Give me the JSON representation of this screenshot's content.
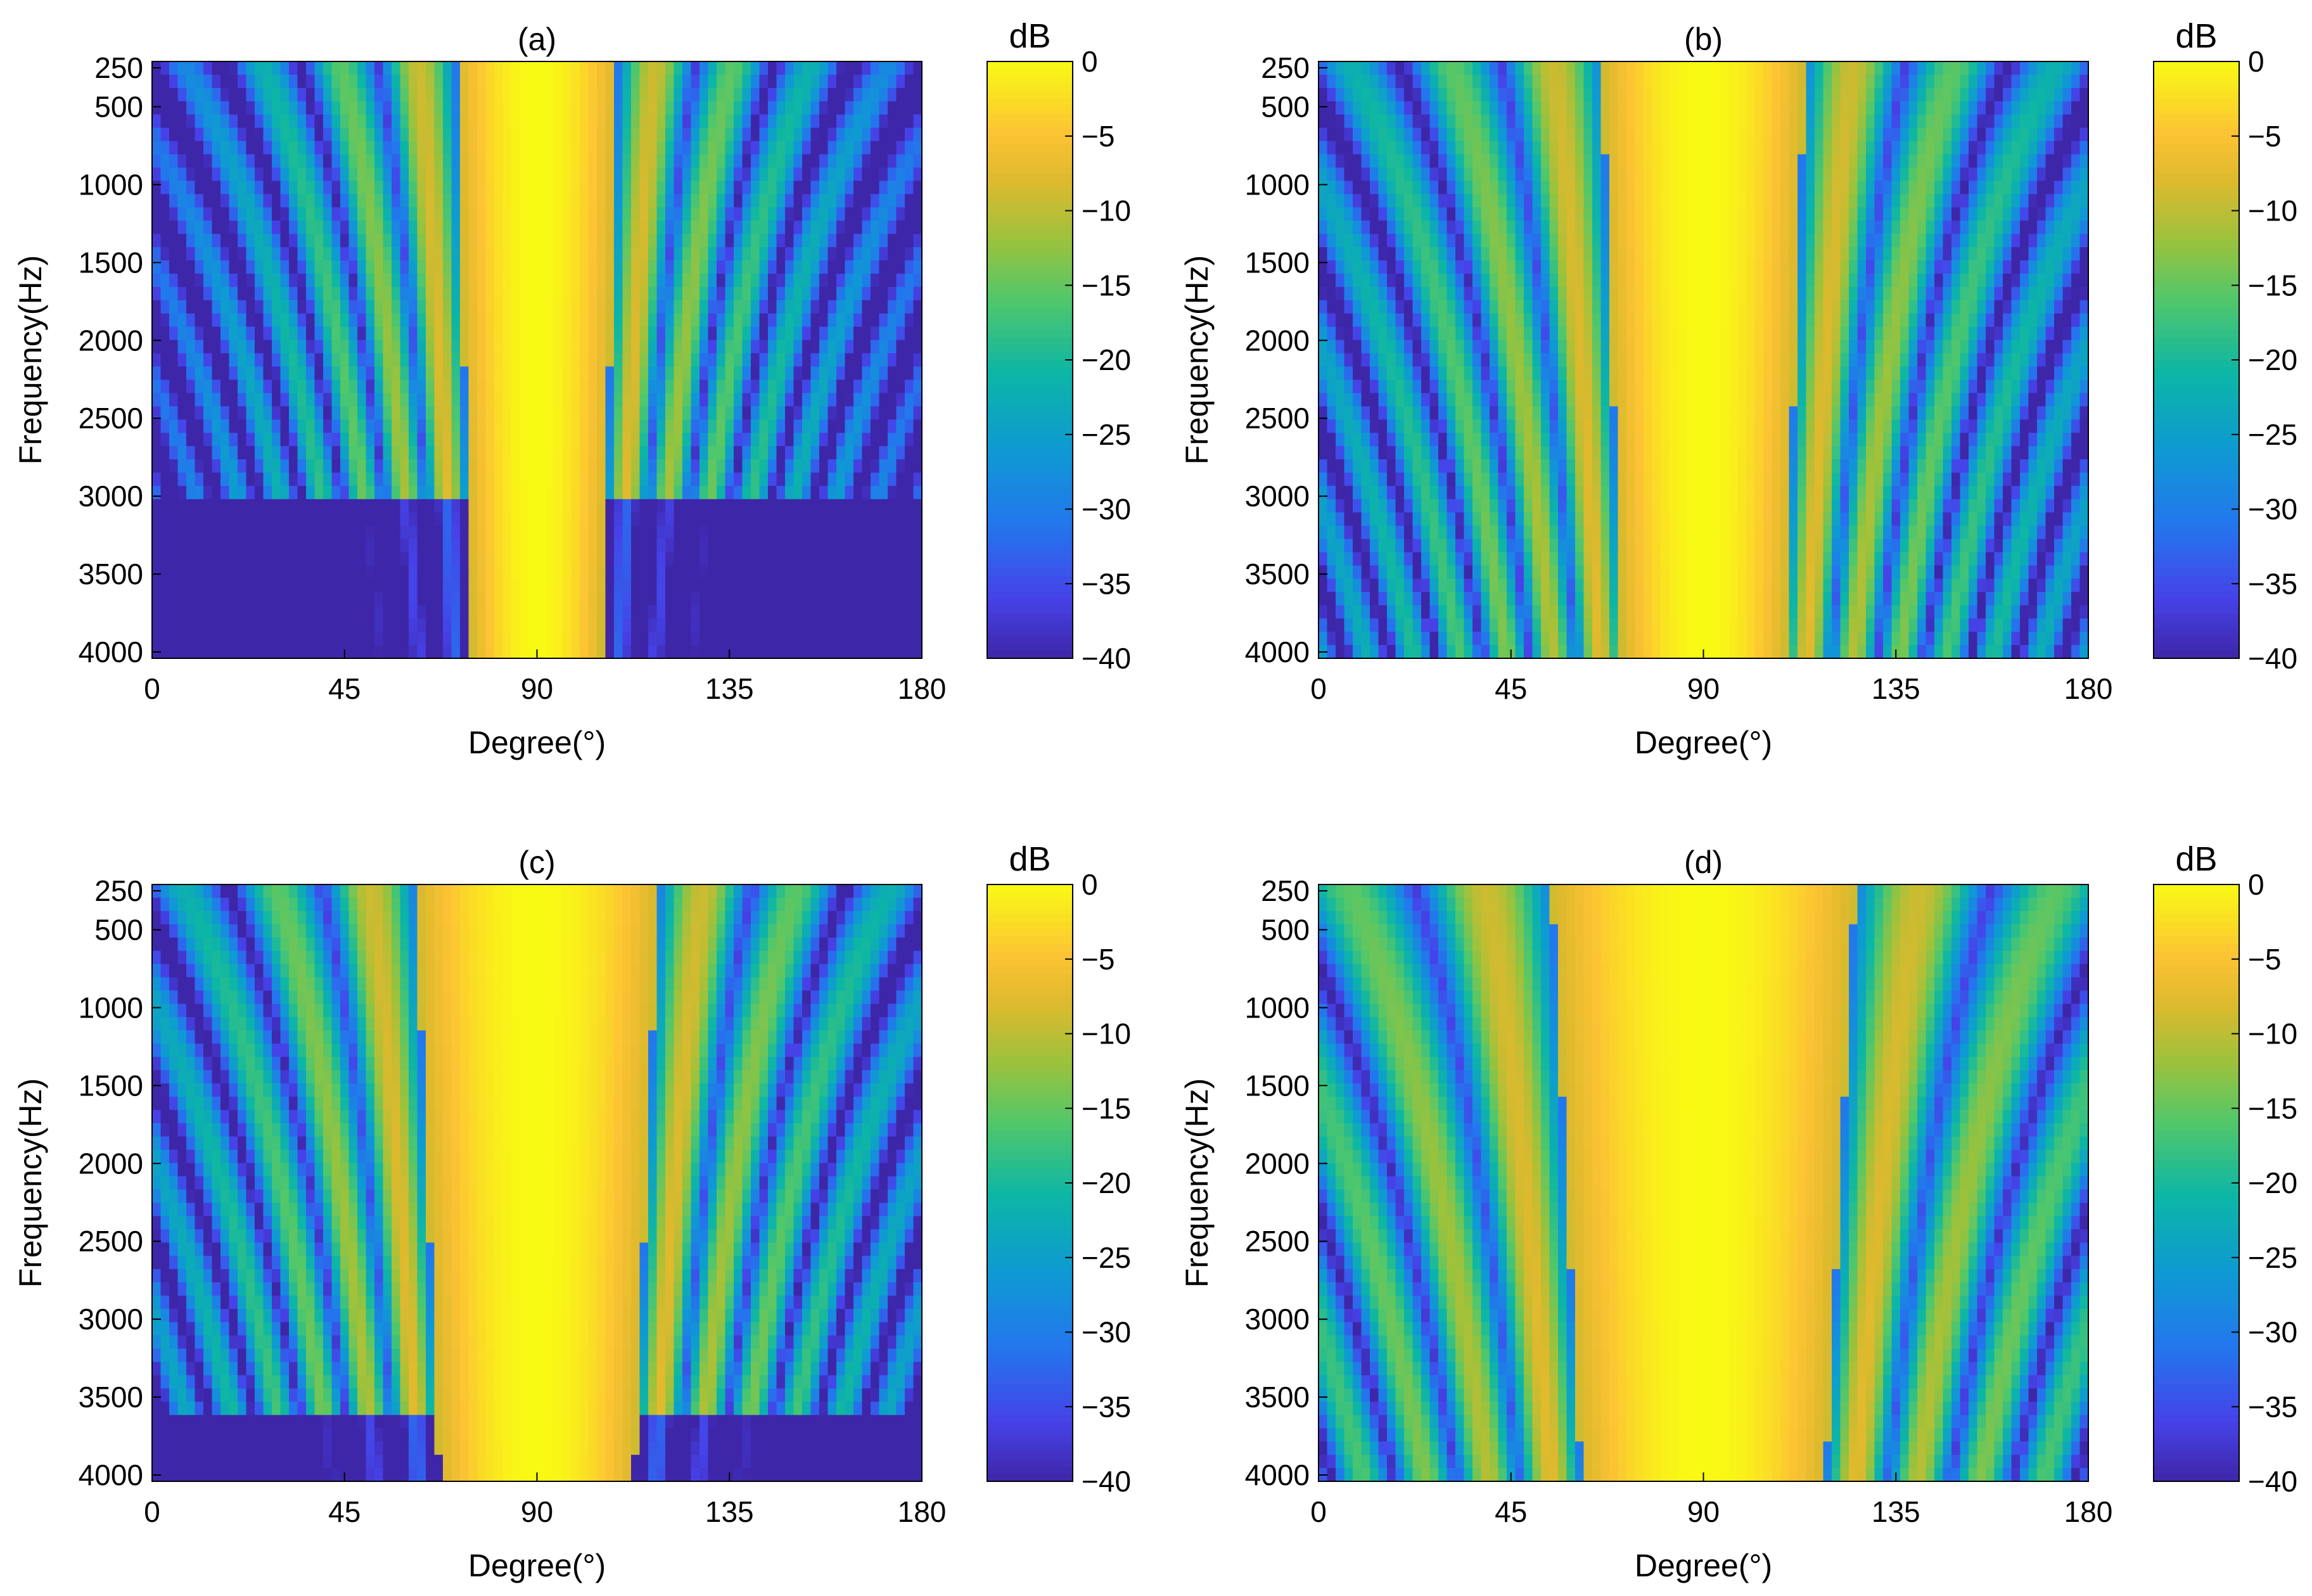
{
  "chart_data": [
    {
      "type": "heatmap",
      "title": "(a)",
      "xlabel": "Degree(°)",
      "ylabel": "Frequency(Hz)",
      "x_range": [
        0,
        180
      ],
      "y_range": [
        250,
        4000
      ],
      "y_inverted": true,
      "x_ticks": [
        "0",
        "45",
        "90",
        "135",
        "180"
      ],
      "y_ticks": [
        "250",
        "500",
        "1000",
        "1500",
        "2000",
        "2500",
        "3000",
        "3500",
        "4000"
      ],
      "colorbar": {
        "label": "dB",
        "range": [
          -40,
          0
        ],
        "ticks": [
          "0",
          "−5",
          "−10",
          "−15",
          "−20",
          "−25",
          "−30",
          "−35",
          "−40"
        ]
      },
      "pattern": {
        "lobe_width_deg": 16,
        "side_gap_deg": 20,
        "sidelobes_to_khz": 3.0,
        "floor_db": -40
      }
    },
    {
      "type": "heatmap",
      "title": "(b)",
      "xlabel": "Degree(°)",
      "ylabel": "Frequency(Hz)",
      "x_range": [
        0,
        180
      ],
      "y_range": [
        250,
        4000
      ],
      "y_inverted": true,
      "x_ticks": [
        "0",
        "45",
        "90",
        "135",
        "180"
      ],
      "y_ticks": [
        "250",
        "500",
        "1000",
        "1500",
        "2000",
        "2500",
        "3000",
        "3500",
        "4000"
      ],
      "colorbar": {
        "label": "dB",
        "range": [
          -40,
          0
        ],
        "ticks": [
          "0",
          "−5",
          "−10",
          "−15",
          "−20",
          "−25",
          "−30",
          "−35",
          "−40"
        ]
      },
      "pattern": {
        "lobe_width_deg": 20,
        "side_gap_deg": 26,
        "sidelobes_to_khz": 4.0,
        "floor_db": -40
      }
    },
    {
      "type": "heatmap",
      "title": "(c)",
      "xlabel": "Degree(°)",
      "ylabel": "Frequency(Hz)",
      "x_range": [
        0,
        180
      ],
      "y_range": [
        250,
        4000
      ],
      "y_inverted": true,
      "x_ticks": [
        "0",
        "45",
        "90",
        "135",
        "180"
      ],
      "y_ticks": [
        "250",
        "500",
        "1000",
        "1500",
        "2000",
        "2500",
        "3000",
        "3500",
        "4000"
      ],
      "colorbar": {
        "label": "dB",
        "range": [
          -40,
          0
        ],
        "ticks": [
          "0",
          "−5",
          "−10",
          "−15",
          "−20",
          "−25",
          "−30",
          "−35",
          "−40"
        ]
      },
      "pattern": {
        "lobe_width_deg": 24,
        "side_gap_deg": 24,
        "sidelobes_to_khz": 3.6,
        "floor_db": -40
      }
    },
    {
      "type": "heatmap",
      "title": "(d)",
      "xlabel": "Degree(°)",
      "ylabel": "Frequency(Hz)",
      "x_range": [
        0,
        180
      ],
      "y_range": [
        250,
        4000
      ],
      "y_inverted": true,
      "x_ticks": [
        "0",
        "45",
        "90",
        "135",
        "180"
      ],
      "y_ticks": [
        "250",
        "500",
        "1000",
        "1500",
        "2000",
        "2500",
        "3000",
        "3500",
        "4000"
      ],
      "colorbar": {
        "label": "dB",
        "range": [
          -40,
          0
        ],
        "ticks": [
          "0",
          "−5",
          "−10",
          "−15",
          "−20",
          "−25",
          "−30",
          "−35",
          "−40"
        ]
      },
      "pattern": {
        "lobe_width_deg": 30,
        "side_gap_deg": 35,
        "sidelobes_to_khz": 4.0,
        "floor_db": -40
      }
    }
  ]
}
